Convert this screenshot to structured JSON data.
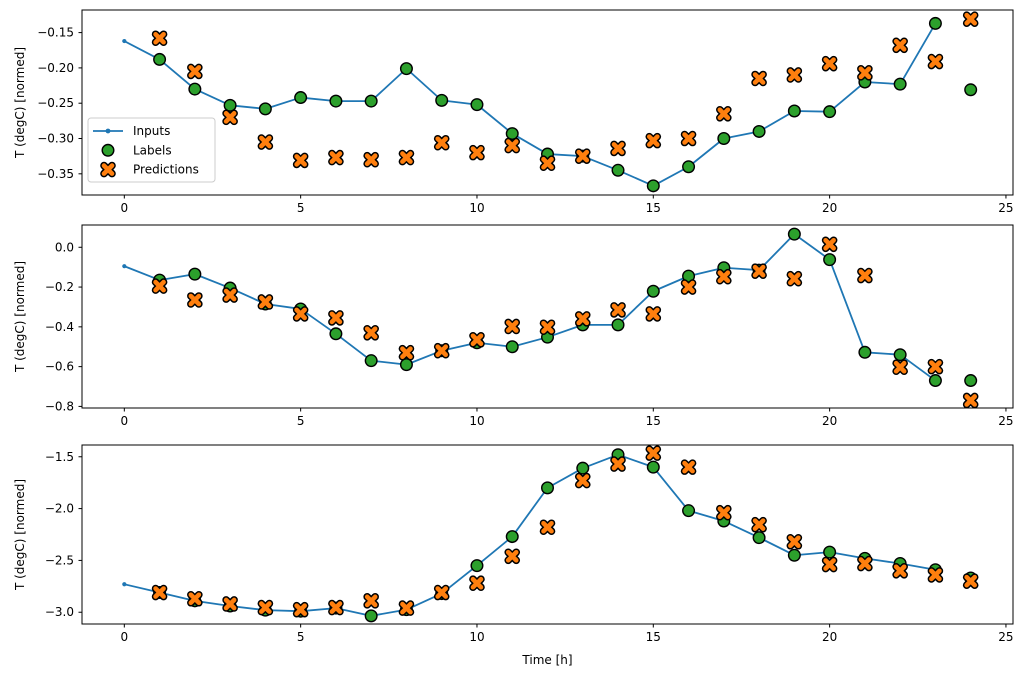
{
  "figure": {
    "background": "#ffffff",
    "xlabel": "Time [h]",
    "ylabel": "T (degC) [normed]",
    "colors": {
      "inputs_line": "#1f77b4",
      "labels_marker": "#2ca02c",
      "predictions_marker": "#ff7f0e",
      "marker_edge": "#000000",
      "spine": "#000000",
      "legend_border": "#cccccc",
      "legend_bg": "#ffffff"
    },
    "legend": {
      "items": [
        {
          "label": "Inputs",
          "marker": "line-with-dot-icon",
          "color": "#1f77b4"
        },
        {
          "label": "Labels",
          "marker": "circle-icon",
          "color": "#2ca02c"
        },
        {
          "label": "Predictions",
          "marker": "x-icon",
          "color": "#ff7f0e"
        }
      ]
    }
  },
  "chart_data": [
    {
      "type": "line",
      "title": "",
      "xlabel": "",
      "ylabel": "T (degC) [normed]",
      "xlim": [
        -1.2,
        25.2
      ],
      "ylim": [
        -0.38,
        -0.118
      ],
      "grid": false,
      "legend": true,
      "xticks": {
        "values": [
          0,
          5,
          10,
          15,
          20,
          25
        ],
        "labels": [
          "0",
          "5",
          "10",
          "15",
          "20",
          "25"
        ]
      },
      "yticks": {
        "values": [
          -0.15,
          -0.2,
          -0.25,
          -0.3,
          -0.35
        ],
        "labels": [
          "−0.15",
          "−0.20",
          "−0.25",
          "−0.30",
          "−0.35"
        ]
      },
      "series": [
        {
          "name": "Inputs",
          "type": "line+dots",
          "x": [
            0,
            1,
            2,
            3,
            4,
            5,
            6,
            7,
            8,
            9,
            10,
            11,
            12,
            13,
            14,
            15,
            16,
            17,
            18,
            19,
            20,
            21,
            22,
            23
          ],
          "y": [
            -0.162,
            -0.188,
            -0.23,
            -0.253,
            -0.258,
            -0.242,
            -0.247,
            -0.247,
            -0.201,
            -0.246,
            -0.252,
            -0.293,
            -0.322,
            -0.325,
            -0.345,
            -0.367,
            -0.34,
            -0.3,
            -0.29,
            -0.261,
            -0.262,
            -0.22,
            -0.223,
            -0.137
          ]
        },
        {
          "name": "Labels",
          "type": "scatter-circle",
          "x": [
            1,
            2,
            3,
            4,
            5,
            6,
            7,
            8,
            9,
            10,
            11,
            12,
            13,
            14,
            15,
            16,
            17,
            18,
            19,
            20,
            21,
            22,
            23,
            24
          ],
          "y": [
            -0.188,
            -0.23,
            -0.253,
            -0.258,
            -0.242,
            -0.247,
            -0.247,
            -0.201,
            -0.246,
            -0.252,
            -0.293,
            -0.322,
            -0.325,
            -0.345,
            -0.367,
            -0.34,
            -0.3,
            -0.29,
            -0.261,
            -0.262,
            -0.22,
            -0.223,
            -0.137,
            -0.231
          ]
        },
        {
          "name": "Predictions",
          "type": "scatter-x",
          "x": [
            1,
            2,
            3,
            4,
            5,
            6,
            7,
            8,
            9,
            10,
            11,
            12,
            13,
            14,
            15,
            16,
            17,
            18,
            19,
            20,
            21,
            22,
            23,
            24
          ],
          "y": [
            -0.158,
            -0.205,
            -0.27,
            -0.305,
            -0.331,
            -0.327,
            -0.33,
            -0.327,
            -0.306,
            -0.32,
            -0.31,
            -0.335,
            -0.325,
            -0.314,
            -0.303,
            -0.3,
            -0.265,
            -0.215,
            -0.21,
            -0.194,
            -0.207,
            -0.168,
            -0.191,
            -0.131
          ]
        }
      ]
    },
    {
      "type": "line",
      "title": "",
      "xlabel": "",
      "ylabel": "T (degC) [normed]",
      "xlim": [
        -1.2,
        25.2
      ],
      "ylim": [
        -0.808,
        0.112
      ],
      "grid": false,
      "legend": false,
      "xticks": {
        "values": [
          0,
          5,
          10,
          15,
          20,
          25
        ],
        "labels": [
          "0",
          "5",
          "10",
          "15",
          "20",
          "25"
        ]
      },
      "yticks": {
        "values": [
          0.0,
          -0.2,
          -0.4,
          -0.6,
          -0.8
        ],
        "labels": [
          "0.0",
          "−0.2",
          "−0.4",
          "−0.6",
          "−0.8"
        ]
      },
      "series": [
        {
          "name": "Inputs",
          "type": "line+dots",
          "x": [
            0,
            1,
            2,
            3,
            4,
            5,
            6,
            7,
            8,
            9,
            10,
            11,
            12,
            13,
            14,
            15,
            16,
            17,
            18,
            19,
            20,
            21,
            22,
            23
          ],
          "y": [
            -0.095,
            -0.165,
            -0.135,
            -0.205,
            -0.285,
            -0.31,
            -0.435,
            -0.57,
            -0.59,
            -0.52,
            -0.48,
            -0.5,
            -0.452,
            -0.39,
            -0.39,
            -0.221,
            -0.145,
            -0.103,
            -0.115,
            0.066,
            -0.062,
            -0.528,
            -0.54,
            -0.67
          ]
        },
        {
          "name": "Labels",
          "type": "scatter-circle",
          "x": [
            1,
            2,
            3,
            4,
            5,
            6,
            7,
            8,
            9,
            10,
            11,
            12,
            13,
            14,
            15,
            16,
            17,
            18,
            19,
            20,
            21,
            22,
            23,
            24
          ],
          "y": [
            -0.165,
            -0.135,
            -0.205,
            -0.285,
            -0.31,
            -0.435,
            -0.57,
            -0.59,
            -0.52,
            -0.48,
            -0.5,
            -0.452,
            -0.39,
            -0.39,
            -0.221,
            -0.145,
            -0.103,
            -0.115,
            0.066,
            -0.062,
            -0.528,
            -0.54,
            -0.67,
            -0.67
          ]
        },
        {
          "name": "Predictions",
          "type": "scatter-x",
          "x": [
            1,
            2,
            3,
            4,
            5,
            6,
            7,
            8,
            9,
            10,
            11,
            12,
            13,
            14,
            15,
            16,
            17,
            18,
            19,
            20,
            21,
            22,
            23,
            24
          ],
          "y": [
            -0.195,
            -0.265,
            -0.24,
            -0.275,
            -0.335,
            -0.355,
            -0.43,
            -0.53,
            -0.52,
            -0.465,
            -0.398,
            -0.402,
            -0.36,
            -0.315,
            -0.335,
            -0.2,
            -0.148,
            -0.12,
            -0.158,
            0.015,
            -0.142,
            -0.603,
            -0.6,
            -0.77
          ]
        }
      ]
    },
    {
      "type": "line",
      "title": "",
      "xlabel": "Time [h]",
      "ylabel": "T (degC) [normed]",
      "xlim": [
        -1.2,
        25.2
      ],
      "ylim": [
        -3.1135,
        -1.3865
      ],
      "grid": false,
      "legend": false,
      "xticks": {
        "values": [
          0,
          5,
          10,
          15,
          20,
          25
        ],
        "labels": [
          "0",
          "5",
          "10",
          "15",
          "20",
          "25"
        ]
      },
      "yticks": {
        "values": [
          -1.5,
          -2.0,
          -2.5,
          -3.0
        ],
        "labels": [
          "−1.5",
          "−2.0",
          "−2.5",
          "−3.0"
        ]
      },
      "series": [
        {
          "name": "Inputs",
          "type": "line+dots",
          "x": [
            0,
            1,
            2,
            3,
            4,
            5,
            6,
            7,
            8,
            9,
            10,
            11,
            12,
            13,
            14,
            15,
            16,
            17,
            18,
            19,
            20,
            21,
            22,
            23
          ],
          "y": [
            -2.73,
            -2.81,
            -2.89,
            -2.94,
            -2.98,
            -2.99,
            -2.96,
            -3.035,
            -2.975,
            -2.82,
            -2.55,
            -2.27,
            -1.8,
            -1.61,
            -1.48,
            -1.6,
            -2.02,
            -2.12,
            -2.28,
            -2.45,
            -2.42,
            -2.48,
            -2.53,
            -2.59
          ]
        },
        {
          "name": "Labels",
          "type": "scatter-circle",
          "x": [
            1,
            2,
            3,
            4,
            5,
            6,
            7,
            8,
            9,
            10,
            11,
            12,
            13,
            14,
            15,
            16,
            17,
            18,
            19,
            20,
            21,
            22,
            23,
            24
          ],
          "y": [
            -2.81,
            -2.89,
            -2.94,
            -2.98,
            -2.99,
            -2.96,
            -3.035,
            -2.975,
            -2.82,
            -2.55,
            -2.27,
            -1.8,
            -1.61,
            -1.48,
            -1.6,
            -2.02,
            -2.12,
            -2.28,
            -2.45,
            -2.42,
            -2.48,
            -2.53,
            -2.59,
            -2.67
          ]
        },
        {
          "name": "Predictions",
          "type": "scatter-x",
          "x": [
            1,
            2,
            3,
            4,
            5,
            6,
            7,
            8,
            9,
            10,
            11,
            12,
            13,
            14,
            15,
            16,
            17,
            18,
            19,
            20,
            21,
            22,
            23,
            24
          ],
          "y": [
            -2.81,
            -2.87,
            -2.92,
            -2.955,
            -2.975,
            -2.955,
            -2.89,
            -2.96,
            -2.81,
            -2.72,
            -2.46,
            -2.18,
            -1.73,
            -1.57,
            -1.465,
            -1.6,
            -2.04,
            -2.155,
            -2.32,
            -2.54,
            -2.53,
            -2.6,
            -2.64,
            -2.7
          ]
        }
      ]
    }
  ]
}
